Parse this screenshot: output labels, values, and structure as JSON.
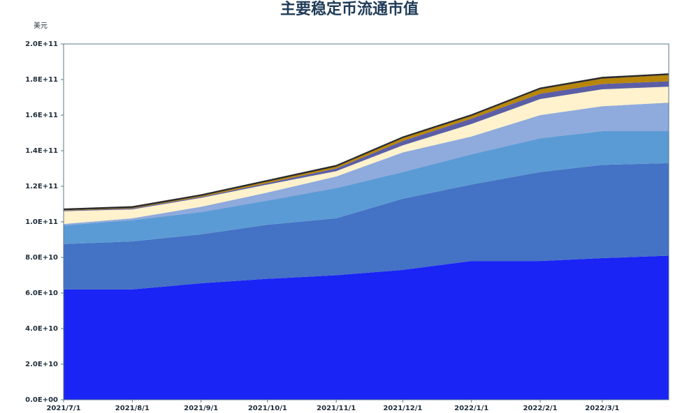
{
  "chart_data": {
    "type": "area",
    "stacked": true,
    "title": "主要稳定币流通市值",
    "y_label": "美元",
    "x": [
      "2021/7/1",
      "2021/8/1",
      "2021/9/1",
      "2021/10/1",
      "2021/11/1",
      "2021/12/1",
      "2022/1/1",
      "2022/2/1",
      "2022/3/1",
      "2022/3/31"
    ],
    "xlim": [
      "2021/7/1",
      "2022/3/31"
    ],
    "xticks": [
      "2021/7/1",
      "2021/8/1",
      "2021/9/1",
      "2021/10/1",
      "2021/11/1",
      "2021/12/1",
      "2022/1/1",
      "2022/2/1",
      "2022/3/1"
    ],
    "ylim": [
      0,
      200000000000
    ],
    "yticks": [
      {
        "value": 0,
        "label": "0.0E+00"
      },
      {
        "value": 20000000000,
        "label": "2.0E+10"
      },
      {
        "value": 40000000000,
        "label": "4.0E+10"
      },
      {
        "value": 60000000000,
        "label": "6.0E+10"
      },
      {
        "value": 80000000000,
        "label": "8.0E+10"
      },
      {
        "value": 100000000000,
        "label": "1.0E+11"
      },
      {
        "value": 120000000000,
        "label": "1.2E+11"
      },
      {
        "value": 140000000000,
        "label": "1.4E+11"
      },
      {
        "value": 160000000000,
        "label": "1.6E+11"
      },
      {
        "value": 180000000000,
        "label": "1.8E+11"
      },
      {
        "value": 200000000000,
        "label": "2.0E+11"
      }
    ],
    "series": [
      {
        "color": "#1a24f5",
        "values": [
          62000000000,
          62000000000,
          65500000000,
          68000000000,
          70000000000,
          73000000000,
          78000000000,
          78000000000,
          79600000000,
          81000000000
        ]
      },
      {
        "color": "#4472c4",
        "values": [
          25500000000,
          27000000000,
          27500000000,
          30400000000,
          32000000000,
          40000000000,
          43000000000,
          50000000000,
          52400000000,
          52000000000
        ]
      },
      {
        "color": "#5b9bd5",
        "values": [
          10500000000,
          12000000000,
          12500000000,
          13600000000,
          17000000000,
          15000000000,
          17000000000,
          19000000000,
          19000000000,
          18000000000
        ]
      },
      {
        "color": "#8faadc",
        "values": [
          800000000,
          1000000000,
          3000000000,
          4500000000,
          6500000000,
          11000000000,
          10000000000,
          13000000000,
          14000000000,
          16000000000
        ]
      },
      {
        "color": "#fff2cc",
        "values": [
          7200000000,
          5000000000,
          5000000000,
          4500000000,
          3000000000,
          4000000000,
          7000000000,
          9000000000,
          9500000000,
          9000000000
        ]
      },
      {
        "color": "#5b5ea6",
        "values": [
          300000000,
          500000000,
          500000000,
          800000000,
          1500000000,
          2500000000,
          3000000000,
          3000000000,
          3000000000,
          3000000000
        ]
      },
      {
        "color": "#b8860b",
        "values": [
          200000000,
          300000000,
          500000000,
          800000000,
          1000000000,
          1500000000,
          1500000000,
          2500000000,
          3000000000,
          3500000000
        ]
      },
      {
        "color": "#2b2b2b",
        "values": [
          1000000000,
          1000000000,
          1000000000,
          1000000000,
          1000000000,
          1000000000,
          1000000000,
          1000000000,
          1000000000,
          1000000000
        ]
      }
    ]
  }
}
